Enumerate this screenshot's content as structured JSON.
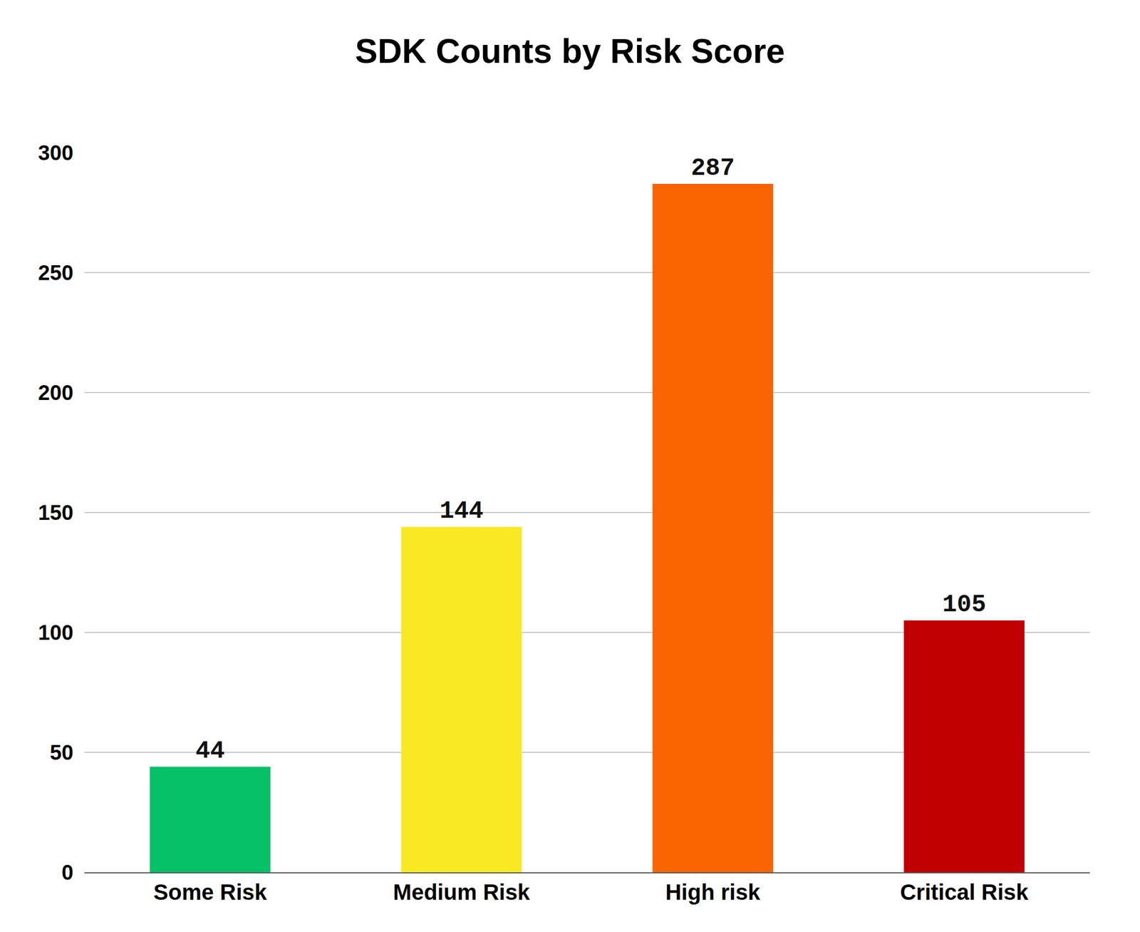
{
  "chart_data": {
    "type": "bar",
    "title": "SDK Counts by Risk Score",
    "categories": [
      "Some Risk",
      "Medium Risk",
      "High risk",
      "Critical Risk"
    ],
    "values": [
      44,
      144,
      287,
      105
    ],
    "colors": [
      "#05c067",
      "#f9e925",
      "#fb6402",
      "#c00000"
    ],
    "ylim": [
      0,
      300
    ],
    "yticks": [
      0,
      50,
      100,
      150,
      200,
      250,
      300
    ],
    "grid": true,
    "data_labels": true
  }
}
